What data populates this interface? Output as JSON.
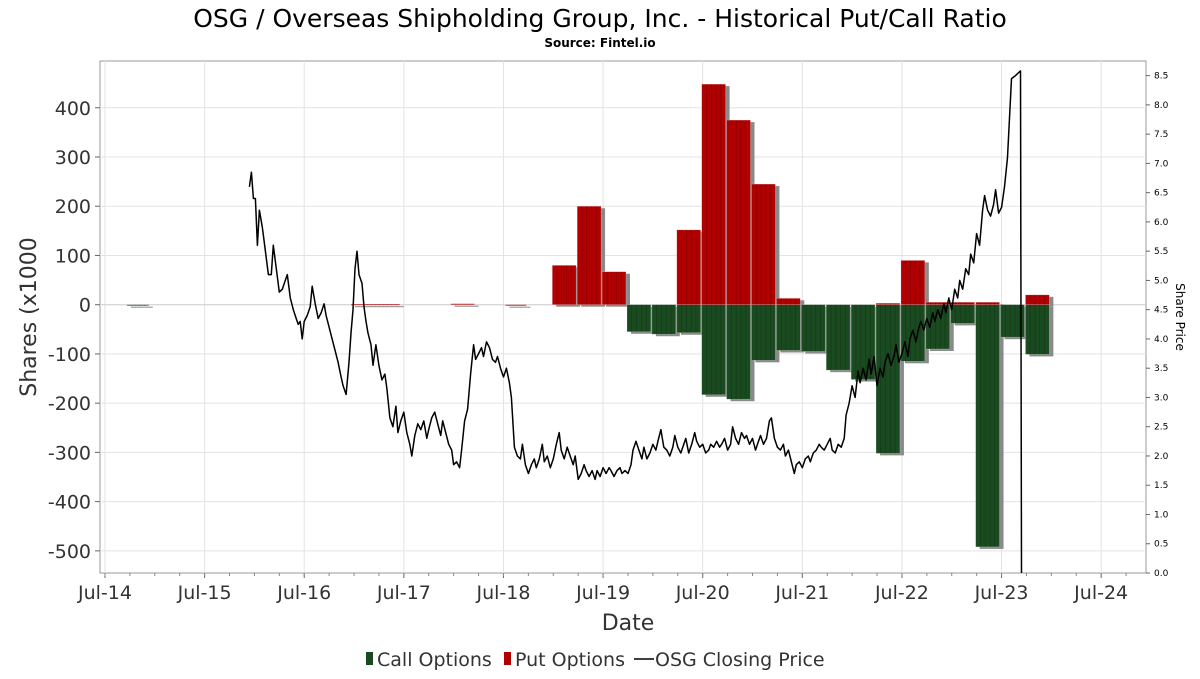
{
  "chart_data": {
    "type": "bar",
    "title": "OSG / Overseas Shipholding Group, Inc. - Historical Put/Call Ratio",
    "subtitle": "Source: Fintel.io",
    "xlabel": "Date",
    "ylabel": "Shares (x1000",
    "y2label": "Share Price",
    "ylim": [
      -545,
      495
    ],
    "y2lim": [
      0,
      8.75
    ],
    "xlim": [
      2014.45,
      2024.95
    ],
    "yticks": [
      "400",
      "300",
      "200",
      "100",
      "0",
      "-100",
      "-200",
      "-300",
      "-400",
      "-500"
    ],
    "y2ticks": [
      "8.5",
      "8.0",
      "7.5",
      "7.0",
      "6.5",
      "6.0",
      "5.5",
      "5.0",
      "4.5",
      "4.0",
      "3.5",
      "3.0",
      "2.5",
      "2.0",
      "1.5",
      "1.0",
      "0.5",
      "0.0"
    ],
    "xticks": [
      "Jul-14",
      "Jul-15",
      "Jul-16",
      "Jul-17",
      "Jul-18",
      "Jul-19",
      "Jul-20",
      "Jul-21",
      "Jul-22",
      "Jul-23",
      "Jul-24"
    ],
    "grid": true,
    "legend_position": "bottom-center",
    "legend": [
      {
        "label": "Call Options",
        "color": "#1a4a1f",
        "kind": "bar"
      },
      {
        "label": "Put Options",
        "color": "#b00000",
        "kind": "bar"
      },
      {
        "label": "OSG Closing Price",
        "color": "#000000",
        "kind": "line"
      }
    ],
    "colors": {
      "call": "#1a4a1f",
      "put": "#b00000",
      "price": "#000000",
      "shadow": "#8a8a8a"
    },
    "bars_call": [
      {
        "x0": 2014.72,
        "x1": 2014.95,
        "value": -2
      },
      {
        "x0": 2019.74,
        "x1": 2019.99,
        "value": -55
      },
      {
        "x0": 2019.99,
        "x1": 2020.24,
        "value": -60
      },
      {
        "x0": 2020.24,
        "x1": 2020.49,
        "value": -57
      },
      {
        "x0": 2020.49,
        "x1": 2020.74,
        "value": -183
      },
      {
        "x0": 2020.74,
        "x1": 2020.99,
        "value": -192
      },
      {
        "x0": 2020.99,
        "x1": 2021.24,
        "value": -113
      },
      {
        "x0": 2021.24,
        "x1": 2021.49,
        "value": -93
      },
      {
        "x0": 2021.49,
        "x1": 2021.74,
        "value": -95
      },
      {
        "x0": 2021.74,
        "x1": 2021.99,
        "value": -133
      },
      {
        "x0": 2021.99,
        "x1": 2022.24,
        "value": -152
      },
      {
        "x0": 2022.24,
        "x1": 2022.49,
        "value": -302
      },
      {
        "x0": 2022.49,
        "x1": 2022.74,
        "value": -115
      },
      {
        "x0": 2022.74,
        "x1": 2022.99,
        "value": -90
      },
      {
        "x0": 2022.99,
        "x1": 2023.24,
        "value": -38
      },
      {
        "x0": 2023.24,
        "x1": 2023.49,
        "value": -492
      },
      {
        "x0": 2023.49,
        "x1": 2023.74,
        "value": -66
      },
      {
        "x0": 2023.74,
        "x1": 2023.99,
        "value": -101
      }
    ],
    "bars_put": [
      {
        "x0": 2016.97,
        "x1": 2017.47,
        "value": 1
      },
      {
        "x0": 2017.97,
        "x1": 2018.22,
        "value": 2
      },
      {
        "x0": 2018.52,
        "x1": 2018.74,
        "value": 0
      },
      {
        "x0": 2018.99,
        "x1": 2019.24,
        "value": 80
      },
      {
        "x0": 2019.24,
        "x1": 2019.49,
        "value": 200
      },
      {
        "x0": 2019.49,
        "x1": 2019.74,
        "value": 67
      },
      {
        "x0": 2020.24,
        "x1": 2020.49,
        "value": 152
      },
      {
        "x0": 2020.49,
        "x1": 2020.74,
        "value": 448
      },
      {
        "x0": 2020.74,
        "x1": 2020.99,
        "value": 375
      },
      {
        "x0": 2020.99,
        "x1": 2021.24,
        "value": 245
      },
      {
        "x0": 2021.24,
        "x1": 2021.49,
        "value": 13
      },
      {
        "x0": 2022.24,
        "x1": 2022.49,
        "value": 3
      },
      {
        "x0": 2022.49,
        "x1": 2022.74,
        "value": 90
      },
      {
        "x0": 2022.74,
        "x1": 2022.99,
        "value": 5
      },
      {
        "x0": 2022.99,
        "x1": 2023.24,
        "value": 5
      },
      {
        "x0": 2023.24,
        "x1": 2023.49,
        "value": 5
      },
      {
        "x0": 2023.74,
        "x1": 2023.99,
        "value": 20
      }
    ],
    "price_series": [
      [
        2015.95,
        6.6
      ],
      [
        2015.97,
        6.85
      ],
      [
        2015.99,
        6.4
      ],
      [
        2016.01,
        6.4
      ],
      [
        2016.03,
        5.6
      ],
      [
        2016.05,
        6.2
      ],
      [
        2016.08,
        5.9
      ],
      [
        2016.11,
        5.5
      ],
      [
        2016.14,
        5.1
      ],
      [
        2016.17,
        5.1
      ],
      [
        2016.19,
        5.6
      ],
      [
        2016.22,
        5.2
      ],
      [
        2016.25,
        4.8
      ],
      [
        2016.28,
        4.85
      ],
      [
        2016.31,
        5.0
      ],
      [
        2016.33,
        5.1
      ],
      [
        2016.36,
        4.7
      ],
      [
        2016.39,
        4.5
      ],
      [
        2016.42,
        4.35
      ],
      [
        2016.44,
        4.25
      ],
      [
        2016.46,
        4.3
      ],
      [
        2016.48,
        4.0
      ],
      [
        2016.5,
        4.3
      ],
      [
        2016.53,
        4.4
      ],
      [
        2016.56,
        4.55
      ],
      [
        2016.58,
        4.9
      ],
      [
        2016.61,
        4.6
      ],
      [
        2016.64,
        4.35
      ],
      [
        2016.67,
        4.45
      ],
      [
        2016.7,
        4.6
      ],
      [
        2016.72,
        4.4
      ],
      [
        2016.75,
        4.2
      ],
      [
        2016.78,
        4.0
      ],
      [
        2016.81,
        3.8
      ],
      [
        2016.84,
        3.6
      ],
      [
        2016.87,
        3.35
      ],
      [
        2016.89,
        3.2
      ],
      [
        2016.92,
        3.05
      ],
      [
        2016.95,
        3.6
      ],
      [
        2016.97,
        4.1
      ],
      [
        2016.99,
        4.5
      ],
      [
        2017.01,
        5.2
      ],
      [
        2017.03,
        5.5
      ],
      [
        2017.05,
        5.1
      ],
      [
        2017.08,
        4.95
      ],
      [
        2017.1,
        4.55
      ],
      [
        2017.12,
        4.3
      ],
      [
        2017.14,
        4.1
      ],
      [
        2017.17,
        3.9
      ],
      [
        2017.19,
        3.55
      ],
      [
        2017.22,
        3.9
      ],
      [
        2017.25,
        3.55
      ],
      [
        2017.28,
        3.3
      ],
      [
        2017.31,
        3.4
      ],
      [
        2017.33,
        3.15
      ],
      [
        2017.36,
        2.65
      ],
      [
        2017.39,
        2.5
      ],
      [
        2017.42,
        2.85
      ],
      [
        2017.44,
        2.4
      ],
      [
        2017.47,
        2.6
      ],
      [
        2017.5,
        2.75
      ],
      [
        2017.53,
        2.4
      ],
      [
        2017.56,
        2.2
      ],
      [
        2017.58,
        2.0
      ],
      [
        2017.61,
        2.35
      ],
      [
        2017.64,
        2.55
      ],
      [
        2017.67,
        2.45
      ],
      [
        2017.7,
        2.6
      ],
      [
        2017.73,
        2.3
      ],
      [
        2017.75,
        2.45
      ],
      [
        2017.78,
        2.65
      ],
      [
        2017.81,
        2.75
      ],
      [
        2017.84,
        2.55
      ],
      [
        2017.87,
        2.35
      ],
      [
        2017.89,
        2.6
      ],
      [
        2017.92,
        2.4
      ],
      [
        2017.95,
        2.2
      ],
      [
        2017.98,
        2.1
      ],
      [
        2018.0,
        1.85
      ],
      [
        2018.03,
        1.9
      ],
      [
        2018.06,
        1.8
      ],
      [
        2018.08,
        2.1
      ],
      [
        2018.11,
        2.6
      ],
      [
        2018.14,
        2.8
      ],
      [
        2018.17,
        3.4
      ],
      [
        2018.2,
        3.9
      ],
      [
        2018.22,
        3.65
      ],
      [
        2018.25,
        3.75
      ],
      [
        2018.28,
        3.85
      ],
      [
        2018.3,
        3.7
      ],
      [
        2018.33,
        3.95
      ],
      [
        2018.36,
        3.85
      ],
      [
        2018.39,
        3.65
      ],
      [
        2018.42,
        3.6
      ],
      [
        2018.44,
        3.7
      ],
      [
        2018.47,
        3.5
      ],
      [
        2018.5,
        3.35
      ],
      [
        2018.53,
        3.5
      ],
      [
        2018.56,
        3.25
      ],
      [
        2018.58,
        3.0
      ],
      [
        2018.61,
        2.15
      ],
      [
        2018.64,
        2.0
      ],
      [
        2018.67,
        1.95
      ],
      [
        2018.69,
        2.2
      ],
      [
        2018.72,
        1.85
      ],
      [
        2018.75,
        1.7
      ],
      [
        2018.78,
        1.85
      ],
      [
        2018.81,
        1.95
      ],
      [
        2018.83,
        1.8
      ],
      [
        2018.86,
        1.95
      ],
      [
        2018.89,
        2.2
      ],
      [
        2018.91,
        1.9
      ],
      [
        2018.94,
        2.0
      ],
      [
        2018.97,
        1.8
      ],
      [
        2019.0,
        1.95
      ],
      [
        2019.03,
        2.2
      ],
      [
        2019.06,
        2.4
      ],
      [
        2019.08,
        2.1
      ],
      [
        2019.11,
        1.95
      ],
      [
        2019.14,
        2.15
      ],
      [
        2019.17,
        2.0
      ],
      [
        2019.2,
        1.85
      ],
      [
        2019.22,
        2.0
      ],
      [
        2019.25,
        1.6
      ],
      [
        2019.28,
        1.7
      ],
      [
        2019.31,
        1.85
      ],
      [
        2019.33,
        1.75
      ],
      [
        2019.36,
        1.65
      ],
      [
        2019.39,
        1.75
      ],
      [
        2019.42,
        1.6
      ],
      [
        2019.44,
        1.75
      ],
      [
        2019.47,
        1.65
      ],
      [
        2019.5,
        1.8
      ],
      [
        2019.53,
        1.7
      ],
      [
        2019.56,
        1.8
      ],
      [
        2019.58,
        1.75
      ],
      [
        2019.61,
        1.65
      ],
      [
        2019.64,
        1.75
      ],
      [
        2019.67,
        1.8
      ],
      [
        2019.69,
        1.7
      ],
      [
        2019.72,
        1.75
      ],
      [
        2019.75,
        1.7
      ],
      [
        2019.78,
        1.85
      ],
      [
        2019.8,
        2.1
      ],
      [
        2019.83,
        2.25
      ],
      [
        2019.86,
        2.1
      ],
      [
        2019.89,
        1.95
      ],
      [
        2019.91,
        2.15
      ],
      [
        2019.94,
        1.95
      ],
      [
        2019.97,
        2.05
      ],
      [
        2020.0,
        2.2
      ],
      [
        2020.03,
        2.1
      ],
      [
        2020.05,
        2.25
      ],
      [
        2020.08,
        2.45
      ],
      [
        2020.11,
        2.15
      ],
      [
        2020.14,
        2.1
      ],
      [
        2020.17,
        2.0
      ],
      [
        2020.2,
        2.15
      ],
      [
        2020.22,
        2.35
      ],
      [
        2020.25,
        2.15
      ],
      [
        2020.28,
        2.05
      ],
      [
        2020.31,
        2.2
      ],
      [
        2020.33,
        2.3
      ],
      [
        2020.36,
        2.05
      ],
      [
        2020.39,
        2.2
      ],
      [
        2020.42,
        2.4
      ],
      [
        2020.44,
        2.25
      ],
      [
        2020.47,
        2.15
      ],
      [
        2020.5,
        2.2
      ],
      [
        2020.53,
        2.05
      ],
      [
        2020.56,
        2.1
      ],
      [
        2020.58,
        2.2
      ],
      [
        2020.61,
        2.15
      ],
      [
        2020.64,
        2.25
      ],
      [
        2020.67,
        2.15
      ],
      [
        2020.69,
        2.2
      ],
      [
        2020.72,
        2.3
      ],
      [
        2020.75,
        2.1
      ],
      [
        2020.78,
        2.2
      ],
      [
        2020.8,
        2.5
      ],
      [
        2020.83,
        2.3
      ],
      [
        2020.86,
        2.2
      ],
      [
        2020.89,
        2.4
      ],
      [
        2020.92,
        2.3
      ],
      [
        2020.94,
        2.35
      ],
      [
        2020.97,
        2.2
      ],
      [
        2021.0,
        2.3
      ],
      [
        2021.03,
        2.1
      ],
      [
        2021.06,
        2.25
      ],
      [
        2021.08,
        2.35
      ],
      [
        2021.11,
        2.2
      ],
      [
        2021.14,
        2.3
      ],
      [
        2021.17,
        2.6
      ],
      [
        2021.19,
        2.65
      ],
      [
        2021.22,
        2.3
      ],
      [
        2021.25,
        2.15
      ],
      [
        2021.28,
        2.1
      ],
      [
        2021.31,
        2.2
      ],
      [
        2021.33,
        2.0
      ],
      [
        2021.36,
        2.1
      ],
      [
        2021.39,
        1.9
      ],
      [
        2021.42,
        1.7
      ],
      [
        2021.44,
        1.85
      ],
      [
        2021.47,
        1.9
      ],
      [
        2021.5,
        1.8
      ],
      [
        2021.53,
        1.95
      ],
      [
        2021.56,
        2.0
      ],
      [
        2021.58,
        1.9
      ],
      [
        2021.61,
        2.05
      ],
      [
        2021.64,
        2.1
      ],
      [
        2021.67,
        2.2
      ],
      [
        2021.69,
        2.15
      ],
      [
        2021.72,
        2.1
      ],
      [
        2021.75,
        2.2
      ],
      [
        2021.78,
        2.3
      ],
      [
        2021.8,
        2.1
      ],
      [
        2021.83,
        2.05
      ],
      [
        2021.86,
        2.2
      ],
      [
        2021.89,
        2.15
      ],
      [
        2021.92,
        2.3
      ],
      [
        2021.94,
        2.7
      ],
      [
        2021.97,
        2.9
      ],
      [
        2022.0,
        3.2
      ],
      [
        2022.03,
        3.0
      ],
      [
        2022.06,
        3.45
      ],
      [
        2022.08,
        3.25
      ],
      [
        2022.11,
        3.5
      ],
      [
        2022.14,
        3.3
      ],
      [
        2022.17,
        3.65
      ],
      [
        2022.19,
        3.4
      ],
      [
        2022.22,
        3.7
      ],
      [
        2022.25,
        3.2
      ],
      [
        2022.28,
        3.5
      ],
      [
        2022.31,
        3.35
      ],
      [
        2022.33,
        3.6
      ],
      [
        2022.36,
        3.75
      ],
      [
        2022.39,
        3.55
      ],
      [
        2022.42,
        3.7
      ],
      [
        2022.44,
        3.9
      ],
      [
        2022.47,
        3.6
      ],
      [
        2022.5,
        3.75
      ],
      [
        2022.53,
        3.95
      ],
      [
        2022.56,
        3.7
      ],
      [
        2022.58,
        4.0
      ],
      [
        2022.61,
        4.15
      ],
      [
        2022.64,
        3.95
      ],
      [
        2022.67,
        4.2
      ],
      [
        2022.69,
        4.3
      ],
      [
        2022.72,
        4.15
      ],
      [
        2022.75,
        4.35
      ],
      [
        2022.78,
        4.2
      ],
      [
        2022.81,
        4.45
      ],
      [
        2022.83,
        4.3
      ],
      [
        2022.86,
        4.5
      ],
      [
        2022.89,
        4.35
      ],
      [
        2022.92,
        4.6
      ],
      [
        2022.94,
        4.45
      ],
      [
        2022.97,
        4.7
      ],
      [
        2023.0,
        4.5
      ],
      [
        2023.03,
        4.85
      ],
      [
        2023.06,
        4.7
      ],
      [
        2023.08,
        5.0
      ],
      [
        2023.11,
        4.85
      ],
      [
        2023.14,
        5.2
      ],
      [
        2023.17,
        5.1
      ],
      [
        2023.19,
        5.45
      ],
      [
        2023.22,
        5.3
      ],
      [
        2023.25,
        5.8
      ],
      [
        2023.28,
        5.6
      ],
      [
        2023.31,
        6.2
      ],
      [
        2023.33,
        6.45
      ],
      [
        2023.36,
        6.2
      ],
      [
        2023.39,
        6.1
      ],
      [
        2023.42,
        6.3
      ],
      [
        2023.44,
        6.55
      ],
      [
        2023.47,
        6.15
      ],
      [
        2023.5,
        6.25
      ],
      [
        2023.53,
        6.6
      ],
      [
        2023.56,
        7.1
      ],
      [
        2023.6,
        8.45
      ],
      [
        2023.64,
        8.5
      ],
      [
        2023.67,
        8.55
      ],
      [
        2023.69,
        8.58
      ],
      [
        2023.7,
        0.0
      ]
    ]
  }
}
